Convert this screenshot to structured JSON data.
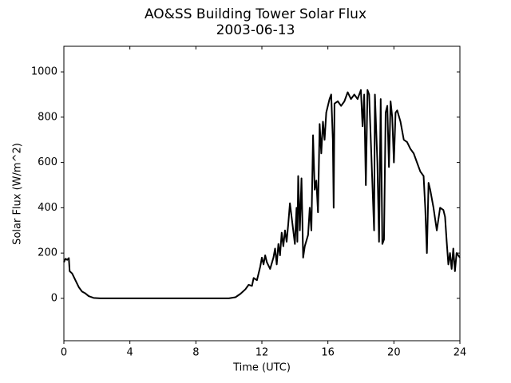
{
  "chart_data": {
    "type": "line",
    "title": "AO&SS Building Tower Solar Flux",
    "subtitle": "2003-06-13",
    "x_label": "Time (UTC)",
    "y_label": "Solar Flux (W/m^2)",
    "color": "#000000",
    "x": [
      0,
      0.1,
      0.2,
      0.3,
      0.35,
      0.5,
      0.7,
      0.9,
      1.1,
      1.3,
      1.5,
      1.8,
      2.2,
      4,
      8,
      10,
      10.4,
      10.7,
      11,
      11.2,
      11.4,
      11.5,
      11.7,
      11.9,
      12.0,
      12.1,
      12.2,
      12.3,
      12.5,
      12.7,
      12.8,
      12.9,
      13.0,
      13.1,
      13.2,
      13.3,
      13.4,
      13.5,
      13.6,
      13.7,
      13.8,
      13.9,
      14.0,
      14.1,
      14.15,
      14.2,
      14.3,
      14.4,
      14.5,
      14.6,
      14.8,
      14.9,
      15.0,
      15.1,
      15.2,
      15.3,
      15.4,
      15.5,
      15.6,
      15.7,
      15.8,
      15.9,
      16.0,
      16.1,
      16.2,
      16.3,
      16.35,
      16.4,
      16.6,
      16.8,
      17.0,
      17.2,
      17.4,
      17.6,
      17.8,
      18.0,
      18.1,
      18.2,
      18.3,
      18.4,
      18.5,
      18.6,
      18.8,
      18.85,
      19.0,
      19.1,
      19.2,
      19.3,
      19.4,
      19.5,
      19.6,
      19.7,
      19.8,
      19.9,
      20.0,
      20.1,
      20.2,
      20.4,
      20.6,
      20.8,
      21.0,
      21.2,
      21.4,
      21.6,
      21.8,
      21.9,
      22.0,
      22.1,
      22.2,
      22.4,
      22.6,
      22.8,
      23.0,
      23.1,
      23.2,
      23.3,
      23.4,
      23.5,
      23.6,
      23.7,
      23.8,
      24
    ],
    "values": [
      160,
      175,
      170,
      178,
      120,
      110,
      80,
      50,
      30,
      22,
      10,
      2,
      0,
      0,
      0,
      0,
      5,
      20,
      40,
      60,
      55,
      90,
      80,
      140,
      180,
      150,
      190,
      160,
      130,
      180,
      220,
      150,
      240,
      190,
      290,
      230,
      300,
      250,
      330,
      420,
      360,
      300,
      240,
      400,
      250,
      540,
      300,
      530,
      180,
      230,
      280,
      400,
      300,
      720,
      480,
      520,
      380,
      770,
      640,
      780,
      700,
      820,
      850,
      880,
      900,
      700,
      400,
      860,
      870,
      850,
      870,
      910,
      880,
      900,
      880,
      920,
      760,
      900,
      500,
      920,
      900,
      700,
      300,
      900,
      600,
      250,
      880,
      240,
      260,
      820,
      850,
      580,
      870,
      800,
      600,
      820,
      830,
      780,
      700,
      690,
      660,
      640,
      600,
      560,
      540,
      400,
      200,
      510,
      480,
      400,
      300,
      400,
      390,
      360,
      250,
      150,
      200,
      130,
      220,
      120,
      200,
      180
    ],
    "xlim": [
      0,
      24
    ],
    "xticks": [
      0,
      4,
      8,
      12,
      16,
      20,
      24
    ],
    "ylim": [
      -187,
      1113
    ],
    "yticks": [
      0,
      200,
      400,
      600,
      800,
      1000
    ]
  }
}
